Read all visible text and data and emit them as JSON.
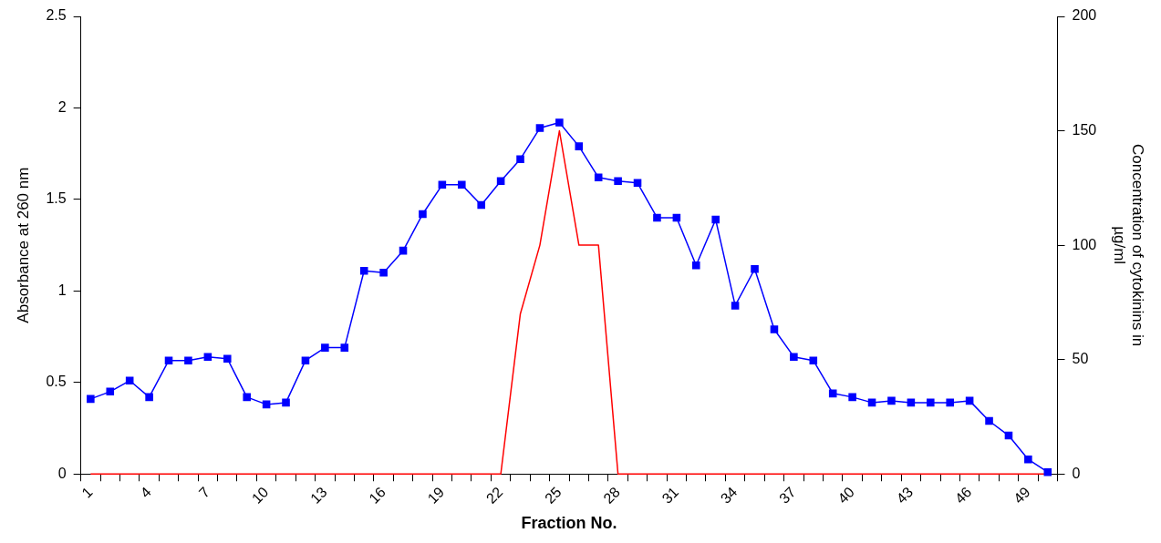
{
  "chart_data": {
    "type": "line",
    "xlabel": "Fraction No.",
    "ylabel": "Absorbance at 260 nm",
    "y2label": "Concentration of cytokinins in\nµg/ml",
    "categories": [
      "1",
      null,
      null,
      "4",
      null,
      null,
      "7",
      null,
      null,
      "10",
      null,
      null,
      "13",
      null,
      null,
      "16",
      null,
      null,
      "19",
      null,
      null,
      "22",
      null,
      null,
      "25",
      null,
      null,
      "28",
      null,
      null,
      "31",
      null,
      null,
      "34",
      null,
      null,
      "37",
      null,
      null,
      "40",
      null,
      null,
      "43",
      null,
      null,
      "46",
      null,
      null,
      "49",
      null
    ],
    "series": [
      {
        "color": "#0000ff",
        "marker": "square",
        "values": [
          0.41,
          0.45,
          0.51,
          0.42,
          0.62,
          0.62,
          0.64,
          0.63,
          0.42,
          0.38,
          0.39,
          0.62,
          0.69,
          0.69,
          1.11,
          1.1,
          1.22,
          1.42,
          1.58,
          1.58,
          1.47,
          1.6,
          1.72,
          1.89,
          1.92,
          1.79,
          1.62,
          1.6,
          1.59,
          1.4,
          1.4,
          1.14,
          1.39,
          0.92,
          1.12,
          0.79,
          0.64,
          0.62,
          0.44,
          0.42,
          0.39,
          0.4,
          0.39,
          0.39,
          0.39,
          0.4,
          0.29,
          0.21,
          0.08,
          0.01
        ]
      },
      {
        "color": "#ff0000",
        "marker": "none",
        "axis": "y2",
        "values": [
          0,
          0,
          0,
          0,
          0,
          0,
          0,
          0,
          0,
          0,
          0,
          0,
          0,
          0,
          0,
          0,
          0,
          0,
          0,
          0,
          0,
          0,
          70,
          100,
          150,
          100,
          100,
          0,
          0,
          0,
          0,
          0,
          0,
          0,
          0,
          0,
          0,
          0,
          0,
          0,
          0,
          0,
          0,
          0,
          0,
          0,
          0,
          0,
          0,
          0
        ]
      }
    ],
    "ylim": [
      0,
      2.5
    ],
    "yticks": [
      0,
      0.5,
      1,
      1.5,
      2,
      2.5
    ],
    "y2lim": [
      0,
      200
    ],
    "y2ticks": [
      0,
      50,
      100,
      150,
      200
    ],
    "grid": false,
    "legend": false
  }
}
